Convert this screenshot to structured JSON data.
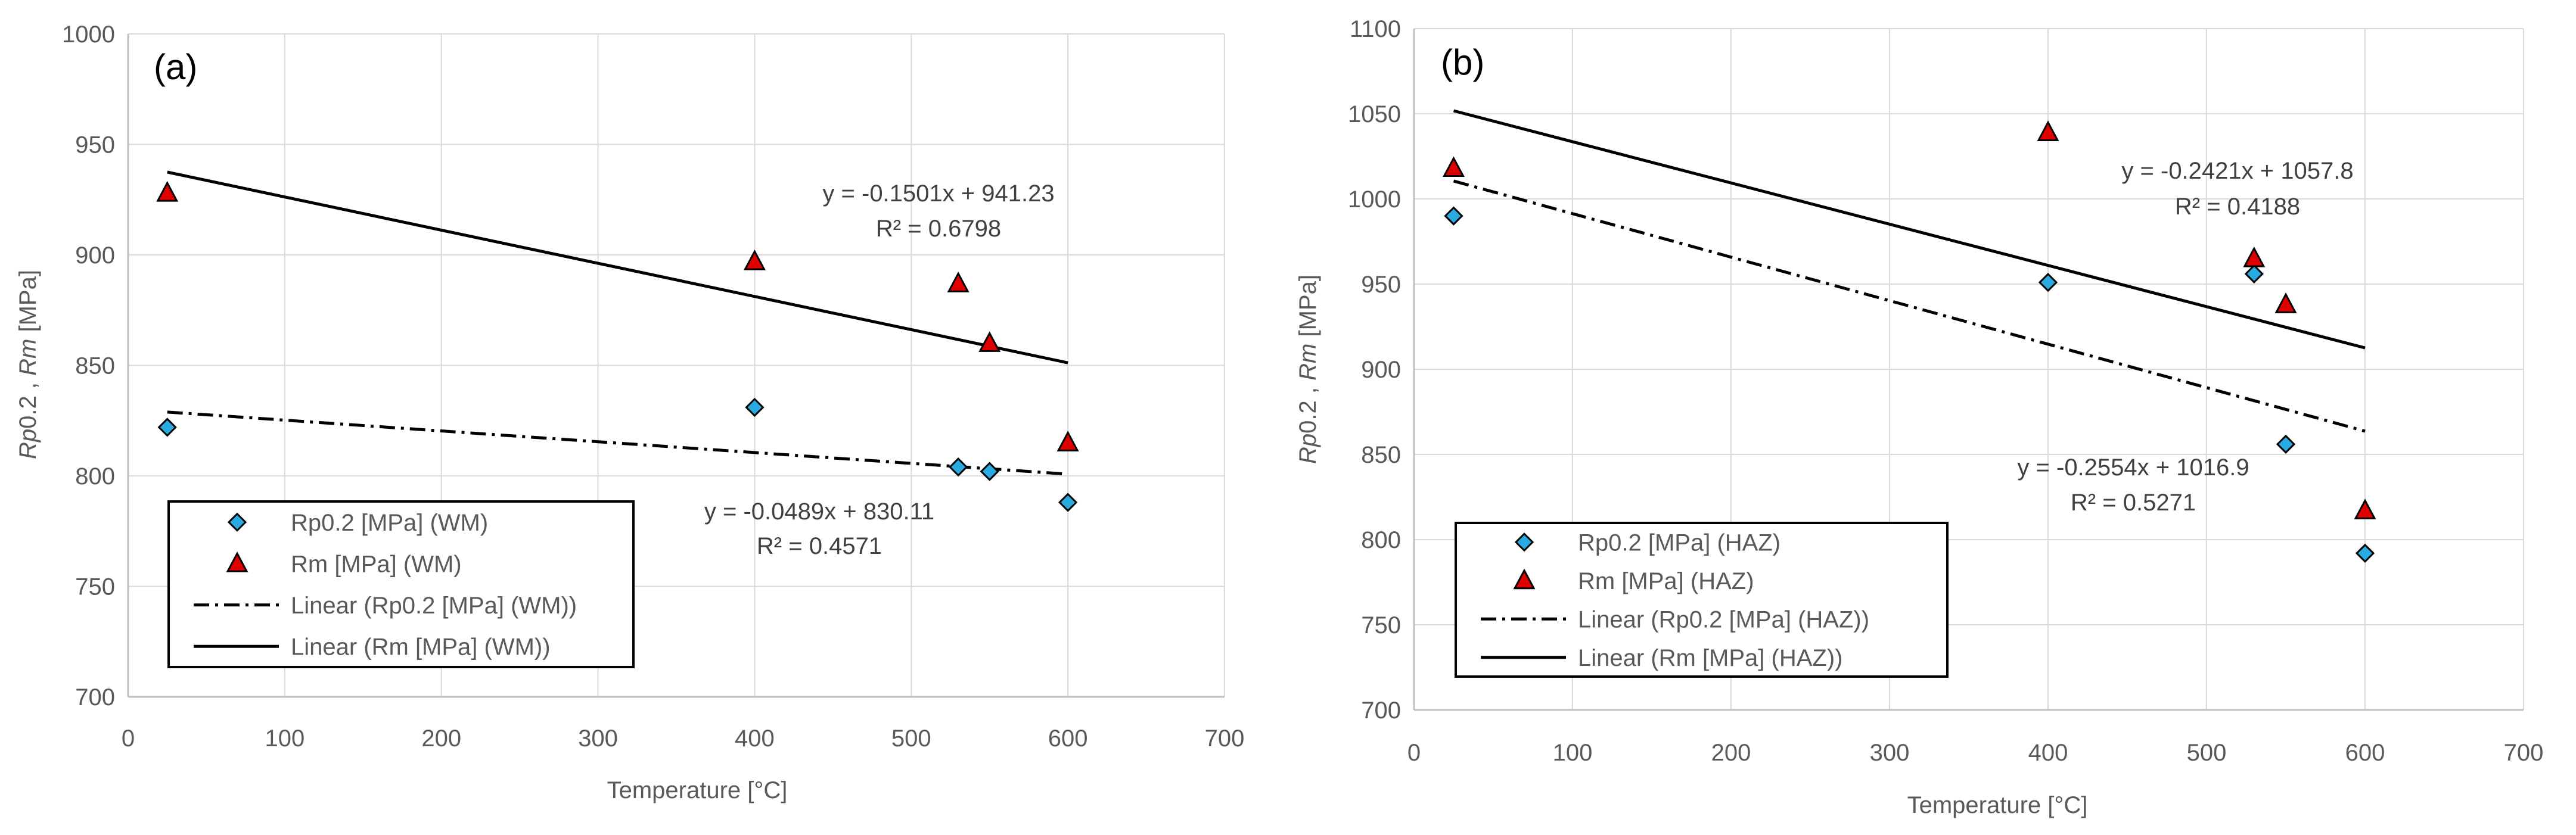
{
  "chart_data": [
    {
      "type": "scatter",
      "panel_label": "(a)",
      "xlabel": "Temperature [°C]",
      "ylabel_parts": [
        "Rp",
        "0.2 , ",
        "Rm",
        " [MPa]"
      ],
      "xlim": [
        0,
        700
      ],
      "ylim": [
        700,
        1000
      ],
      "xticks": [
        0,
        100,
        200,
        300,
        400,
        500,
        600,
        700
      ],
      "yticks": [
        700,
        750,
        800,
        850,
        900,
        950,
        1000
      ],
      "grid": true,
      "series": [
        {
          "name": "Rp0.2 [MPa] (WM)",
          "marker": "diamond",
          "color": "#29ABE2",
          "x": [
            25,
            400,
            530,
            550,
            600
          ],
          "y": [
            822,
            831,
            804,
            802,
            788
          ]
        },
        {
          "name": "Rm [MPa] (WM)",
          "marker": "triangle",
          "color": "#E00000",
          "x": [
            25,
            400,
            530,
            550,
            600
          ],
          "y": [
            928,
            897,
            887,
            860,
            815
          ]
        }
      ],
      "trendlines": [
        {
          "name": "Linear (Rp0.2 [MPa] (WM))",
          "style": "dashdot",
          "slope": -0.0489,
          "intercept": 830.11,
          "x_range": [
            25,
            600
          ],
          "equation": "y = -0.0489x + 830.11",
          "r2": "R² = 0.4571"
        },
        {
          "name": "Linear (Rm [MPa] (WM))",
          "style": "solid",
          "slope": -0.1501,
          "intercept": 941.23,
          "x_range": [
            25,
            600
          ],
          "equation": "y = -0.1501x + 941.23",
          "r2": "R² = 0.6798"
        }
      ],
      "legend_position": "bottom-left"
    },
    {
      "type": "scatter",
      "panel_label": "(b)",
      "xlabel": "Temperature [°C]",
      "ylabel_parts": [
        "Rp",
        "0.2 , ",
        "Rm",
        " [MPa]"
      ],
      "xlim": [
        0,
        700
      ],
      "ylim": [
        700,
        1100
      ],
      "xticks": [
        0,
        100,
        200,
        300,
        400,
        500,
        600,
        700
      ],
      "yticks": [
        700,
        750,
        800,
        850,
        900,
        950,
        1000,
        1050,
        1100
      ],
      "grid": true,
      "series": [
        {
          "name": "Rp0.2 [MPa] (HAZ)",
          "marker": "diamond",
          "color": "#29ABE2",
          "x": [
            25,
            400,
            530,
            550,
            600
          ],
          "y": [
            990,
            951,
            956,
            856,
            792
          ]
        },
        {
          "name": "Rm [MPa] (HAZ)",
          "marker": "triangle",
          "color": "#E00000",
          "x": [
            25,
            400,
            530,
            550,
            600
          ],
          "y": [
            1018,
            1039,
            965,
            938,
            817
          ]
        }
      ],
      "trendlines": [
        {
          "name": "Linear (Rp0.2 [MPa] (HAZ))",
          "style": "dashdot",
          "slope": -0.2554,
          "intercept": 1016.9,
          "x_range": [
            25,
            600
          ],
          "equation": "y = -0.2554x + 1016.9",
          "r2": "R² = 0.5271"
        },
        {
          "name": "Linear (Rm [MPa] (HAZ))",
          "style": "solid",
          "slope": -0.2421,
          "intercept": 1057.8,
          "x_range": [
            25,
            600
          ],
          "equation": "y = -0.2421x + 1057.8",
          "r2": "R² = 0.4188"
        }
      ],
      "legend_position": "bottom-left"
    }
  ]
}
